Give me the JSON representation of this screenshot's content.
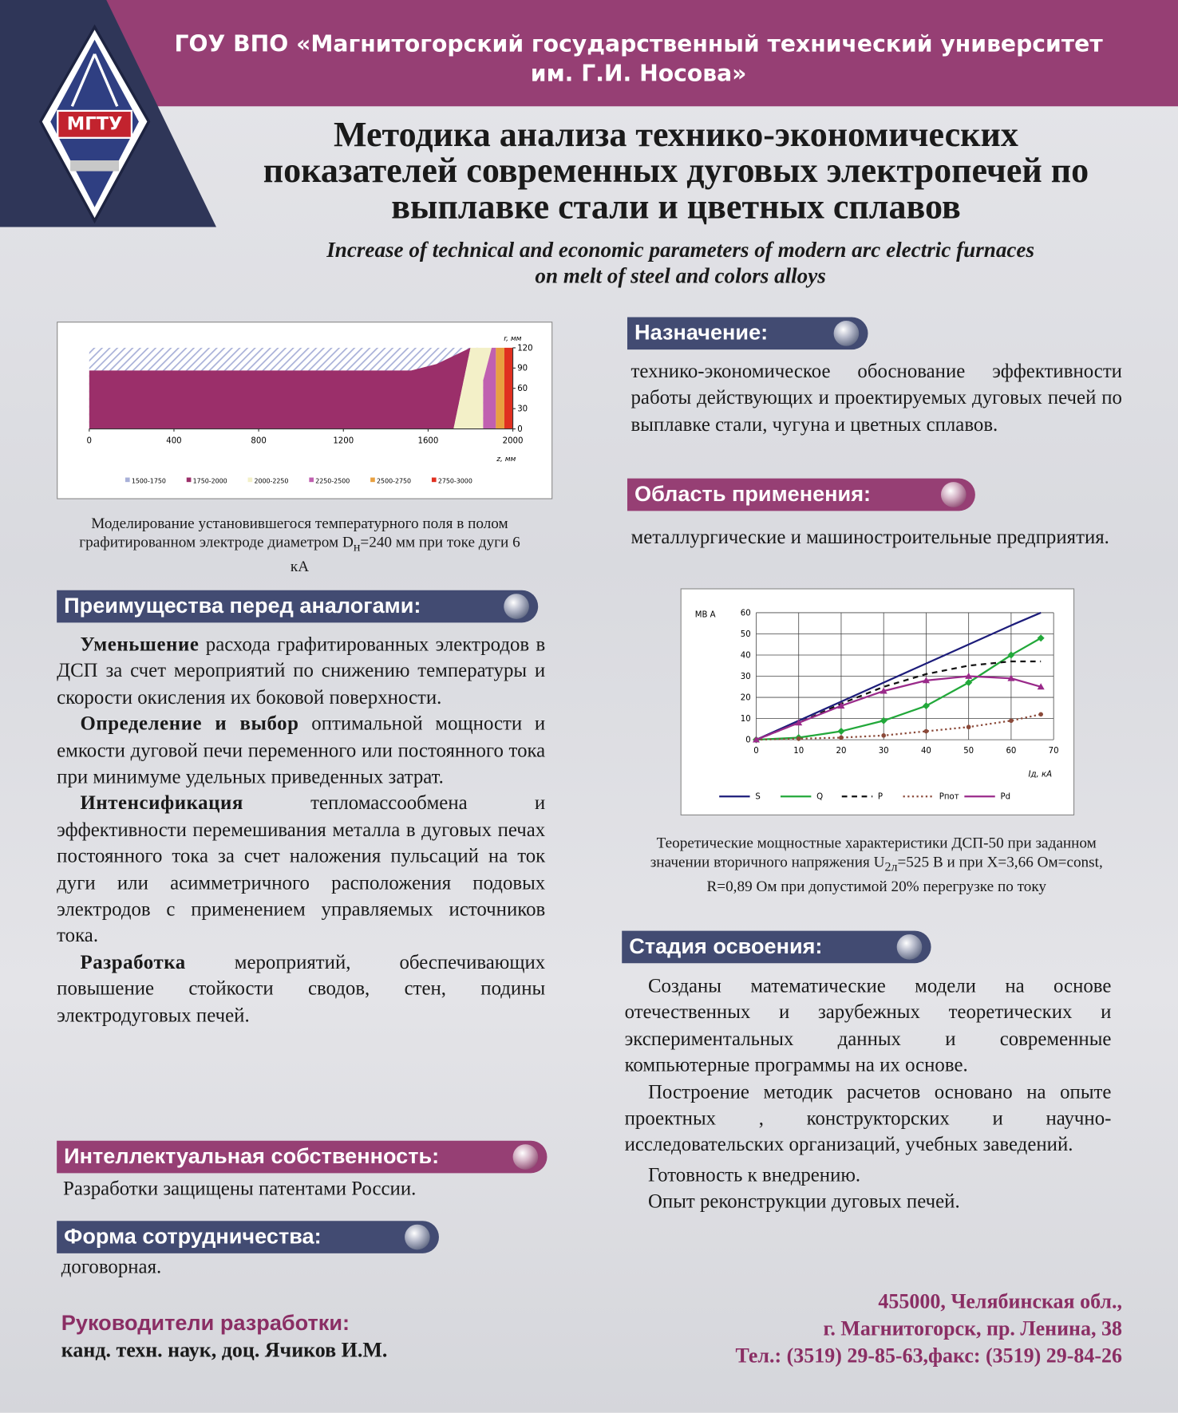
{
  "header": {
    "org_lines": [
      "ГОУ ВПО «Магнитогорский государственный технический университет",
      "им. Г.И. Носова»"
    ],
    "logo": "МГТУ",
    "title_lines": [
      "Методика анализа технико-экономических",
      "показателей современных дуговых электропечей по",
      "выплавке стали и цветных сплавов"
    ],
    "subtitle_lines": [
      "Increase of technical and economic parameters of modern arc electric furnaces",
      "on melt  of steel and colors alloys"
    ]
  },
  "chart1": {
    "type": "area",
    "xlim": [
      0,
      2000
    ],
    "xticks": [
      0,
      400,
      800,
      1200,
      1600,
      2000
    ],
    "ylim": [
      0,
      120
    ],
    "yticks": [
      0,
      30,
      60,
      90,
      120
    ],
    "x_label": "z, мм",
    "y_label": "r, мм",
    "legend": [
      {
        "name": "1500-1750",
        "color": "#a8b0d8"
      },
      {
        "name": "1750-2000",
        "color": "#9b2f6a"
      },
      {
        "name": "2000-2250",
        "color": "#f3f0c8"
      },
      {
        "name": "2250-2500",
        "color": "#c060b0"
      },
      {
        "name": "2500-2750",
        "color": "#e8a040"
      },
      {
        "name": "2750-3000",
        "color": "#e03020"
      }
    ],
    "caption": {
      "text": "Моделирование установившегося температурного поля в полом графитированном электроде диаметром D",
      "sub": "н",
      "rest": "=240 мм при токе дуги 6 кА"
    }
  },
  "chart2": {
    "type": "line",
    "x": [
      0,
      10,
      20,
      30,
      40,
      50,
      60,
      67
    ],
    "xlim": [
      0,
      70
    ],
    "xticks": [
      0,
      10,
      20,
      30,
      40,
      50,
      60,
      70
    ],
    "ylim": [
      0,
      60
    ],
    "yticks": [
      0,
      10,
      20,
      30,
      40,
      50,
      60
    ],
    "y_label": "МВ А",
    "x_label": "Iд, кА",
    "grid": true,
    "series": [
      {
        "name": "S",
        "color": "#1c1c7a",
        "values": [
          0,
          9,
          18,
          27,
          36,
          45,
          54,
          60
        ]
      },
      {
        "name": "Q",
        "color": "#22a83a",
        "values": [
          0,
          1,
          4,
          9,
          16,
          27,
          40,
          48
        ]
      },
      {
        "name": "P",
        "color": "#111111",
        "values": [
          0,
          8,
          17,
          25,
          31,
          35,
          37,
          37
        ]
      },
      {
        "name": "Pпот",
        "color": "#8b4a3a",
        "values": [
          0,
          0.5,
          1,
          2,
          4,
          6,
          9,
          12
        ]
      },
      {
        "name": "Pd",
        "color": "#9a2a8a",
        "values": [
          0,
          8,
          16,
          23,
          28,
          30,
          29,
          25
        ]
      }
    ],
    "caption": {
      "text": "Теоретические мощностные характеристики ДСП-50 при заданном значении вторичного напряжения U",
      "sub": "2л",
      "rest": "=525 В и при X=3,66 Ом=const, R=0,89 Ом при допустимой 20% перегрузке по току"
    }
  },
  "purpose": {
    "heading": "Назначение:",
    "text": "технико-экономическое обоснование эффективности работы действующих и проектируемых дуговых печей по выплавке стали, чугуна и цветных сплавов."
  },
  "application": {
    "heading": "Область применения:",
    "text": "металлургические и машиностроительные предприятия."
  },
  "advantages": {
    "heading": "Преимущества перед аналогами:",
    "paragraphs": [
      {
        "lead": "Уменьшение",
        "text": " расхода графитированных электродов в ДСП за счет мероприятий по снижению температуры и скорости окисления их боковой поверхности."
      },
      {
        "lead": "Определение и выбор",
        "text": " оптимальной мощности и емкости дуговой печи переменного или постоянного тока при минимуме удельных приведенных затрат."
      },
      {
        "lead": "Интенсификация",
        "text": " тепломассообмена и эффективности перемешивания металла в дуговых печах постоянного тока за счет наложения пульсаций на ток дуги или асимметричного расположения подовых электродов с применением управляемых источников тока."
      },
      {
        "lead": "Разработка",
        "text": " мероприятий, обеспечивающих повышение стойкости сводов, стен, подины электродуговых печей."
      }
    ]
  },
  "ip": {
    "heading": "Интеллектуальная собственность:",
    "text": "Разработки защищены патентами России."
  },
  "cooperation": {
    "heading": "Форма сотрудничества:",
    "text": "договорная."
  },
  "stage": {
    "heading": "Стадия освоения:",
    "paragraphs": [
      "Созданы математические модели на основе отечественных и зарубежных теоретических и экспериментальных данных и современные компьютерные программы на их основе.",
      "Построение методик расчетов основано на опыте проектных , конструкторских и научно-исследовательских организаций, учебных заведений.",
      "Готовность к внедрению.",
      "Опыт реконструкции дуговых печей."
    ]
  },
  "leaders": {
    "heading": "Руководители разработки:",
    "text": "канд. техн. наук, доц. Ячиков И.М."
  },
  "address": {
    "lines": [
      "455000, Челябинская обл.,",
      "г. Магнитогорск, пр. Ленина, 38",
      "Тел.: (3519) 29-85-63,факс: (3519) 29-84-26"
    ]
  }
}
